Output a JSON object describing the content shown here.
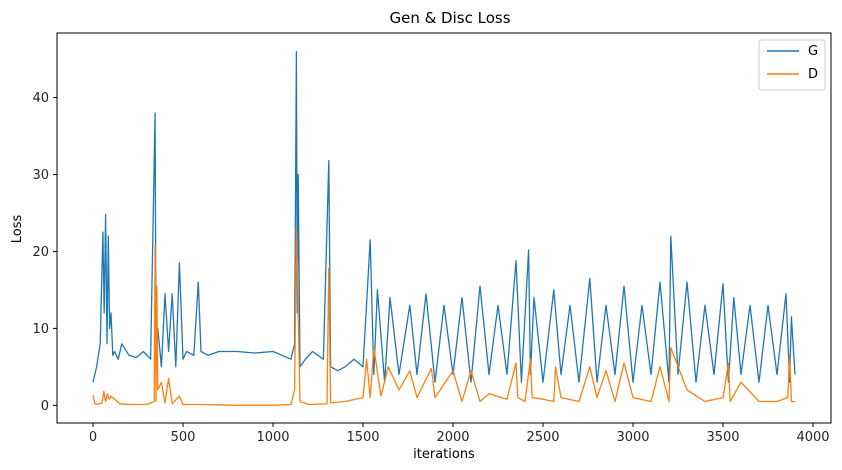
{
  "chart_data": {
    "type": "line",
    "title": "Gen & Disc Loss",
    "xlabel": "iterations",
    "ylabel": "Loss",
    "xlim": [
      -200,
      4100
    ],
    "ylim": [
      -2.3,
      48.4
    ],
    "xticks": [
      0,
      500,
      1000,
      1500,
      2000,
      2500,
      3000,
      3500,
      4000
    ],
    "yticks": [
      0,
      10,
      20,
      30,
      40
    ],
    "grid": false,
    "legend_position": "top-right",
    "series": [
      {
        "name": "G",
        "color": "#1f77b4",
        "x": [
          0,
          20,
          40,
          55,
          62,
          70,
          78,
          85,
          92,
          100,
          110,
          120,
          140,
          160,
          200,
          240,
          280,
          320,
          345,
          350,
          360,
          380,
          400,
          420,
          440,
          460,
          480,
          500,
          520,
          560,
          585,
          600,
          640,
          700,
          800,
          900,
          1000,
          1050,
          1100,
          1120,
          1130,
          1135,
          1140,
          1150,
          1180,
          1220,
          1280,
          1310,
          1320,
          1360,
          1400,
          1450,
          1500,
          1540,
          1560,
          1580,
          1620,
          1650,
          1700,
          1760,
          1800,
          1850,
          1900,
          1950,
          2000,
          2050,
          2100,
          2150,
          2200,
          2250,
          2300,
          2350,
          2380,
          2420,
          2430,
          2450,
          2500,
          2560,
          2600,
          2650,
          2700,
          2760,
          2800,
          2850,
          2900,
          2950,
          3000,
          3050,
          3100,
          3150,
          3200,
          3210,
          3250,
          3300,
          3350,
          3400,
          3450,
          3500,
          3530,
          3560,
          3600,
          3650,
          3700,
          3750,
          3800,
          3850,
          3870,
          3880,
          3900
        ],
        "values": [
          3,
          5,
          8,
          22.5,
          12,
          24.8,
          8,
          22,
          10,
          12,
          6.5,
          7,
          6,
          8,
          6.5,
          6.2,
          7,
          6,
          38,
          6,
          10,
          5,
          14.5,
          7,
          14.5,
          5,
          18.5,
          6,
          7,
          6.5,
          16,
          7,
          6.5,
          7,
          7,
          6.8,
          7,
          6.5,
          6,
          8,
          46,
          12,
          30,
          5,
          6,
          7,
          6,
          31.8,
          5,
          4.5,
          5,
          6,
          5,
          21.5,
          4,
          15,
          3,
          14,
          4,
          13,
          4,
          14.5,
          3,
          13,
          4,
          14,
          3,
          15.5,
          4,
          13,
          4,
          18.8,
          3,
          20.2,
          4,
          14,
          3,
          15,
          4,
          13,
          3,
          16.5,
          3,
          13,
          4,
          15.5,
          3,
          13,
          4,
          16,
          3,
          22,
          4,
          16,
          3,
          13,
          4,
          15.8,
          3,
          14,
          4,
          13,
          3,
          13,
          4,
          14.5,
          3,
          11.5,
          4
        ]
      },
      {
        "name": "D",
        "color": "#ff7f0e",
        "x": [
          0,
          10,
          20,
          50,
          60,
          70,
          80,
          90,
          100,
          150,
          200,
          300,
          340,
          345,
          350,
          355,
          360,
          380,
          400,
          420,
          440,
          480,
          500,
          600,
          800,
          1000,
          1100,
          1120,
          1130,
          1135,
          1140,
          1150,
          1200,
          1300,
          1310,
          1320,
          1400,
          1500,
          1520,
          1540,
          1560,
          1600,
          1640,
          1700,
          1760,
          1800,
          1880,
          1900,
          2000,
          2050,
          2100,
          2150,
          2200,
          2300,
          2350,
          2360,
          2400,
          2430,
          2440,
          2500,
          2560,
          2570,
          2600,
          2700,
          2760,
          2800,
          2850,
          2900,
          2950,
          3000,
          3100,
          3150,
          3200,
          3210,
          3300,
          3400,
          3500,
          3530,
          3540,
          3600,
          3700,
          3800,
          3860,
          3870,
          3880,
          3900
        ],
        "values": [
          1.3,
          0.2,
          0.1,
          0.3,
          1.8,
          0.5,
          1.5,
          0.8,
          1.2,
          0.2,
          0.1,
          0.1,
          0.5,
          20.8,
          0.5,
          15.5,
          2,
          3,
          0.3,
          3.5,
          0.2,
          1.2,
          0.1,
          0.1,
          0,
          0,
          0.1,
          2,
          23,
          18,
          12,
          0.5,
          0.1,
          0.2,
          17.8,
          0.3,
          0.5,
          1,
          6,
          1,
          7.5,
          1.2,
          5,
          2,
          4.5,
          1,
          4.8,
          1,
          4.5,
          0.5,
          4.5,
          0.5,
          1.5,
          0.8,
          5.5,
          1,
          0.5,
          6,
          1,
          0.8,
          0.5,
          5,
          1,
          0.5,
          5,
          1,
          4.5,
          0.5,
          5.5,
          1,
          0.5,
          5,
          0.5,
          7.5,
          2,
          0.5,
          1,
          5.5,
          0.5,
          3,
          0.5,
          0.5,
          1,
          6.5,
          0.5,
          0.5
        ]
      }
    ]
  }
}
